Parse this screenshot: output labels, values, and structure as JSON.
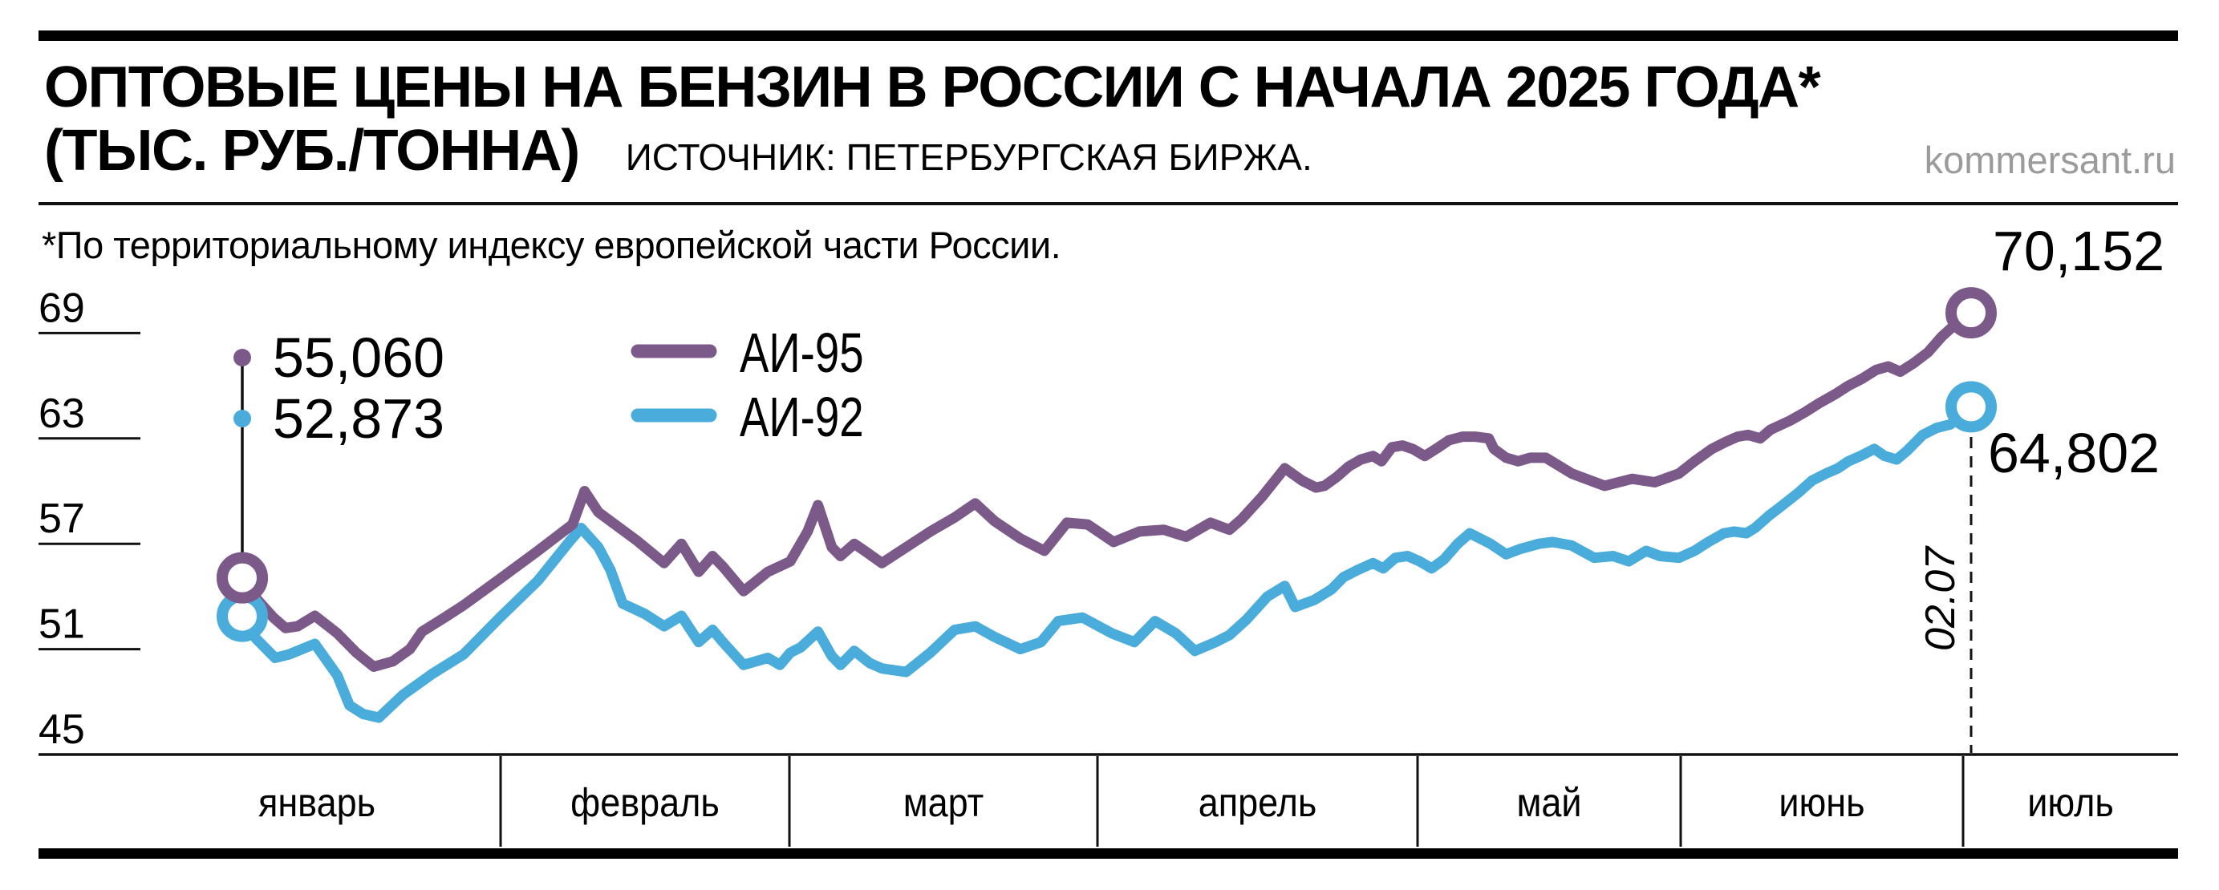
{
  "header": {
    "title_line1": "ОПТОВЫЕ ЦЕНЫ НА БЕНЗИН В РОССИИ С НАЧАЛА 2025 ГОДА*",
    "title_line2": "(ТЫС. РУБ./ТОННА)",
    "source": "ИСТОЧНИК: ПЕТЕРБУРГСКАЯ БИРЖА.",
    "site": "kommersant.ru"
  },
  "footnote": "*По территориальному индексу европейской части России.",
  "style": {
    "purple": "#7b5a8a",
    "blue": "#4aacda",
    "gray": "#9b9b9b",
    "black": "#000000"
  },
  "chart_data": {
    "type": "line",
    "title": "Оптовые цены на бензин в России с начала 2025 года",
    "ylabel": "тыс. руб./тонна",
    "ylim": [
      45,
      71.5
    ],
    "y_ticks": [
      69,
      63,
      57,
      51,
      45
    ],
    "grid": "short left tick underlines only",
    "legend_position": "top-left inside plot area",
    "x_axis": {
      "bands": [
        {
          "label": "январь",
          "x0": 48,
          "x1": 624,
          "label_x": 395
        },
        {
          "label": "февраль",
          "x0": 624,
          "x1": 984
        },
        {
          "label": "март",
          "x0": 984,
          "x1": 1368
        },
        {
          "label": "апрель",
          "x0": 1368,
          "x1": 1767
        },
        {
          "label": "май",
          "x0": 1767,
          "x1": 2095
        },
        {
          "label": "июнь",
          "x0": 2095,
          "x1": 2447
        },
        {
          "label": "июль",
          "x0": 2447,
          "x1": 2715
        }
      ]
    },
    "annotations": {
      "start_values": [
        {
          "series": "АИ-95",
          "label": "55,060",
          "value": 55.06
        },
        {
          "series": "АИ-92",
          "label": "52,873",
          "value": 52.873
        }
      ],
      "end_values": [
        {
          "series": "АИ-95",
          "label": "70,152",
          "value": 70.152
        },
        {
          "series": "АИ-92",
          "label": "64,802",
          "value": 64.802
        }
      ],
      "end_date_label": "02.07"
    },
    "series": [
      {
        "name": "АИ-95",
        "color": "#7b5a8a",
        "points": [
          [
            0.0,
            55.06
          ],
          [
            0.008,
            53.9
          ],
          [
            0.018,
            52.8
          ],
          [
            0.025,
            52.2
          ],
          [
            0.032,
            52.3
          ],
          [
            0.042,
            52.9
          ],
          [
            0.055,
            51.9
          ],
          [
            0.066,
            50.8
          ],
          [
            0.076,
            50.0
          ],
          [
            0.087,
            50.3
          ],
          [
            0.097,
            51.0
          ],
          [
            0.104,
            52.0
          ],
          [
            0.117,
            52.8
          ],
          [
            0.128,
            53.5
          ],
          [
            0.149,
            55.0
          ],
          [
            0.171,
            56.6
          ],
          [
            0.191,
            58.1
          ],
          [
            0.198,
            60.0
          ],
          [
            0.206,
            58.8
          ],
          [
            0.217,
            58.0
          ],
          [
            0.228,
            57.2
          ],
          [
            0.244,
            55.9
          ],
          [
            0.254,
            57.0
          ],
          [
            0.264,
            55.4
          ],
          [
            0.272,
            56.3
          ],
          [
            0.278,
            55.7
          ],
          [
            0.29,
            54.3
          ],
          [
            0.304,
            55.4
          ],
          [
            0.317,
            56.0
          ],
          [
            0.327,
            57.7
          ],
          [
            0.333,
            59.2
          ],
          [
            0.341,
            56.8
          ],
          [
            0.346,
            56.3
          ],
          [
            0.354,
            57.0
          ],
          [
            0.36,
            56.6
          ],
          [
            0.37,
            55.9
          ],
          [
            0.384,
            56.8
          ],
          [
            0.398,
            57.7
          ],
          [
            0.412,
            58.5
          ],
          [
            0.424,
            59.3
          ],
          [
            0.435,
            58.3
          ],
          [
            0.45,
            57.3
          ],
          [
            0.464,
            56.6
          ],
          [
            0.477,
            58.2
          ],
          [
            0.489,
            58.1
          ],
          [
            0.504,
            57.1
          ],
          [
            0.519,
            57.7
          ],
          [
            0.533,
            57.8
          ],
          [
            0.546,
            57.4
          ],
          [
            0.56,
            58.2
          ],
          [
            0.571,
            57.8
          ],
          [
            0.578,
            58.4
          ],
          [
            0.59,
            59.7
          ],
          [
            0.603,
            61.3
          ],
          [
            0.613,
            60.6
          ],
          [
            0.621,
            60.2
          ],
          [
            0.626,
            60.3
          ],
          [
            0.633,
            60.8
          ],
          [
            0.64,
            61.4
          ],
          [
            0.647,
            61.8
          ],
          [
            0.654,
            62.0
          ],
          [
            0.659,
            61.7
          ],
          [
            0.665,
            62.5
          ],
          [
            0.671,
            62.6
          ],
          [
            0.677,
            62.4
          ],
          [
            0.684,
            62.0
          ],
          [
            0.692,
            62.5
          ],
          [
            0.698,
            62.9
          ],
          [
            0.706,
            63.1
          ],
          [
            0.713,
            63.1
          ],
          [
            0.721,
            63.0
          ],
          [
            0.724,
            62.4
          ],
          [
            0.731,
            61.9
          ],
          [
            0.738,
            61.7
          ],
          [
            0.745,
            61.9
          ],
          [
            0.754,
            61.9
          ],
          [
            0.769,
            61.0
          ],
          [
            0.788,
            60.3
          ],
          [
            0.804,
            60.7
          ],
          [
            0.817,
            60.5
          ],
          [
            0.831,
            61.0
          ],
          [
            0.84,
            61.7
          ],
          [
            0.85,
            62.4
          ],
          [
            0.858,
            62.8
          ],
          [
            0.865,
            63.1
          ],
          [
            0.871,
            63.2
          ],
          [
            0.878,
            63.0
          ],
          [
            0.884,
            63.5
          ],
          [
            0.895,
            64.0
          ],
          [
            0.904,
            64.5
          ],
          [
            0.912,
            65.0
          ],
          [
            0.921,
            65.5
          ],
          [
            0.929,
            66.0
          ],
          [
            0.937,
            66.4
          ],
          [
            0.945,
            66.9
          ],
          [
            0.952,
            67.1
          ],
          [
            0.959,
            66.8
          ],
          [
            0.967,
            67.3
          ],
          [
            0.975,
            67.9
          ],
          [
            0.983,
            68.8
          ],
          [
            0.992,
            69.6
          ],
          [
            1.0,
            70.152
          ]
        ]
      },
      {
        "name": "АИ-92",
        "color": "#4aacda",
        "points": [
          [
            0.0,
            52.873
          ],
          [
            0.008,
            51.6
          ],
          [
            0.019,
            50.5
          ],
          [
            0.027,
            50.7
          ],
          [
            0.042,
            51.3
          ],
          [
            0.055,
            49.5
          ],
          [
            0.062,
            47.8
          ],
          [
            0.07,
            47.3
          ],
          [
            0.079,
            47.1
          ],
          [
            0.093,
            48.4
          ],
          [
            0.11,
            49.6
          ],
          [
            0.128,
            50.7
          ],
          [
            0.149,
            52.8
          ],
          [
            0.171,
            54.9
          ],
          [
            0.189,
            57.1
          ],
          [
            0.196,
            57.9
          ],
          [
            0.206,
            56.8
          ],
          [
            0.213,
            55.5
          ],
          [
            0.22,
            53.6
          ],
          [
            0.233,
            53.0
          ],
          [
            0.244,
            52.3
          ],
          [
            0.254,
            52.9
          ],
          [
            0.264,
            51.4
          ],
          [
            0.272,
            52.1
          ],
          [
            0.278,
            51.4
          ],
          [
            0.29,
            50.1
          ],
          [
            0.304,
            50.5
          ],
          [
            0.311,
            50.1
          ],
          [
            0.317,
            50.8
          ],
          [
            0.323,
            51.1
          ],
          [
            0.333,
            52.0
          ],
          [
            0.341,
            50.6
          ],
          [
            0.346,
            50.1
          ],
          [
            0.354,
            50.9
          ],
          [
            0.363,
            50.2
          ],
          [
            0.37,
            49.9
          ],
          [
            0.384,
            49.7
          ],
          [
            0.398,
            50.8
          ],
          [
            0.412,
            52.1
          ],
          [
            0.424,
            52.3
          ],
          [
            0.435,
            51.7
          ],
          [
            0.45,
            51.0
          ],
          [
            0.462,
            51.4
          ],
          [
            0.472,
            52.6
          ],
          [
            0.486,
            52.8
          ],
          [
            0.503,
            51.9
          ],
          [
            0.516,
            51.4
          ],
          [
            0.528,
            52.6
          ],
          [
            0.54,
            51.9
          ],
          [
            0.551,
            50.9
          ],
          [
            0.563,
            51.4
          ],
          [
            0.571,
            51.8
          ],
          [
            0.581,
            52.7
          ],
          [
            0.593,
            54.0
          ],
          [
            0.603,
            54.6
          ],
          [
            0.609,
            53.4
          ],
          [
            0.62,
            53.8
          ],
          [
            0.63,
            54.4
          ],
          [
            0.637,
            55.1
          ],
          [
            0.645,
            55.5
          ],
          [
            0.654,
            55.9
          ],
          [
            0.66,
            55.6
          ],
          [
            0.667,
            56.2
          ],
          [
            0.674,
            56.3
          ],
          [
            0.681,
            56.0
          ],
          [
            0.688,
            55.6
          ],
          [
            0.695,
            56.1
          ],
          [
            0.703,
            57.0
          ],
          [
            0.71,
            57.6
          ],
          [
            0.722,
            57.0
          ],
          [
            0.731,
            56.4
          ],
          [
            0.739,
            56.7
          ],
          [
            0.75,
            57.0
          ],
          [
            0.758,
            57.1
          ],
          [
            0.769,
            56.9
          ],
          [
            0.782,
            56.2
          ],
          [
            0.793,
            56.3
          ],
          [
            0.802,
            56.0
          ],
          [
            0.812,
            56.6
          ],
          [
            0.82,
            56.3
          ],
          [
            0.831,
            56.2
          ],
          [
            0.84,
            56.6
          ],
          [
            0.848,
            57.1
          ],
          [
            0.857,
            57.6
          ],
          [
            0.863,
            57.7
          ],
          [
            0.87,
            57.6
          ],
          [
            0.875,
            57.9
          ],
          [
            0.883,
            58.6
          ],
          [
            0.891,
            59.2
          ],
          [
            0.9,
            59.9
          ],
          [
            0.908,
            60.6
          ],
          [
            0.916,
            61.0
          ],
          [
            0.923,
            61.3
          ],
          [
            0.929,
            61.7
          ],
          [
            0.936,
            62.0
          ],
          [
            0.944,
            62.4
          ],
          [
            0.95,
            62.0
          ],
          [
            0.957,
            61.8
          ],
          [
            0.963,
            62.3
          ],
          [
            0.972,
            63.2
          ],
          [
            0.98,
            63.6
          ],
          [
            0.988,
            63.8
          ],
          [
            1.0,
            64.802
          ]
        ]
      }
    ]
  }
}
